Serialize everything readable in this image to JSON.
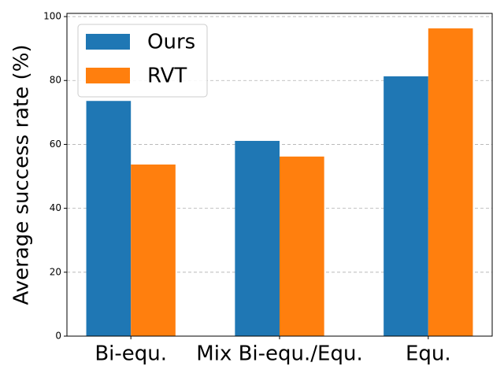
{
  "chart_data": {
    "type": "bar",
    "ylabel": "Average success rate (%)",
    "categories": [
      "Bi-equ.",
      "Mix Bi-equ./Equ.",
      "Equ."
    ],
    "series": [
      {
        "name": "Ours",
        "color": "#1f77b4",
        "values": [
          73.6,
          61.1,
          81.3
        ]
      },
      {
        "name": "RVT",
        "color": "#ff7f0e",
        "values": [
          53.7,
          56.2,
          96.3
        ]
      }
    ],
    "ylim": [
      0,
      101
    ],
    "yticks": [
      0,
      20,
      40,
      60,
      80,
      100
    ],
    "grid": true,
    "legend": "upper left"
  }
}
